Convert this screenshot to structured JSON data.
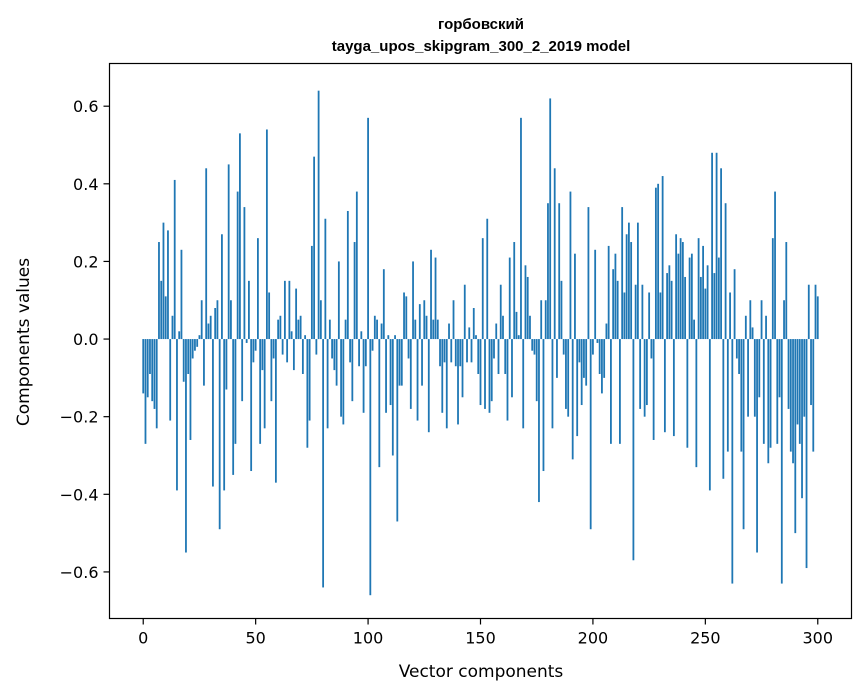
{
  "chart_data": {
    "type": "bar",
    "title": "горбовский",
    "subtitle": "tayga_upos_skipgram_300_2_2019 model",
    "xlabel": "Vector components",
    "ylabel": "Components values",
    "xlim": [
      -15,
      315
    ],
    "ylim": [
      -0.72,
      0.71
    ],
    "x_ticks": [
      0,
      50,
      100,
      150,
      200,
      250,
      300
    ],
    "x_tick_labels": [
      "0",
      "50",
      "100",
      "150",
      "200",
      "250",
      "300"
    ],
    "y_ticks": [
      -0.6,
      -0.4,
      -0.2,
      0.0,
      0.2,
      0.4,
      0.6
    ],
    "y_tick_labels": [
      "−0.6",
      "−0.4",
      "−0.2",
      "0.0",
      "0.2",
      "0.4",
      "0.6"
    ],
    "grid": false,
    "bar_color": "#1f77b4",
    "x": "0..299 (index of each value)",
    "values": [
      -0.14,
      -0.27,
      -0.15,
      -0.09,
      -0.16,
      -0.18,
      -0.23,
      0.25,
      0.15,
      0.3,
      0.11,
      0.28,
      -0.21,
      0.06,
      0.41,
      -0.39,
      0.02,
      0.23,
      -0.11,
      -0.55,
      -0.09,
      -0.26,
      -0.05,
      -0.03,
      -0.02,
      0.01,
      0.1,
      -0.12,
      0.44,
      0.04,
      0.06,
      -0.38,
      0.08,
      0.1,
      -0.49,
      0.27,
      -0.39,
      -0.13,
      0.45,
      0.1,
      -0.35,
      -0.27,
      0.38,
      0.53,
      -0.16,
      0.34,
      -0.01,
      0.15,
      -0.34,
      -0.06,
      -0.03,
      0.26,
      -0.27,
      -0.08,
      -0.23,
      0.54,
      0.12,
      -0.16,
      -0.05,
      -0.37,
      0.05,
      0.06,
      -0.04,
      0.15,
      -0.06,
      0.15,
      0.02,
      -0.08,
      0.13,
      0.05,
      0.06,
      -0.09,
      0.01,
      -0.28,
      -0.21,
      0.24,
      0.47,
      -0.04,
      0.64,
      0.1,
      -0.64,
      0.31,
      -0.23,
      0.05,
      -0.05,
      -0.08,
      -0.12,
      0.2,
      -0.2,
      -0.22,
      0.05,
      0.33,
      -0.06,
      -0.16,
      0.25,
      0.38,
      -0.07,
      0.02,
      -0.19,
      -0.07,
      0.57,
      -0.66,
      -0.03,
      0.06,
      0.05,
      -0.33,
      0.04,
      0.18,
      -0.19,
      0.01,
      -0.17,
      -0.3,
      0.01,
      -0.47,
      -0.12,
      -0.12,
      0.12,
      0.11,
      -0.05,
      -0.18,
      0.2,
      0.05,
      -0.21,
      0.09,
      -0.12,
      0.1,
      0.06,
      -0.24,
      0.23,
      0.05,
      0.21,
      0.05,
      -0.07,
      -0.19,
      -0.06,
      -0.23,
      0.04,
      -0.06,
      0.1,
      -0.07,
      -0.22,
      -0.07,
      -0.15,
      0.14,
      -0.06,
      0.03,
      -0.06,
      0.08,
      0.01,
      -0.09,
      -0.17,
      0.26,
      -0.18,
      0.31,
      -0.19,
      -0.16,
      -0.05,
      0.04,
      -0.09,
      0.14,
      0.06,
      -0.09,
      -0.21,
      0.21,
      -0.15,
      0.25,
      0.07,
      0.01,
      0.57,
      -0.23,
      0.19,
      0.16,
      0.06,
      -0.03,
      -0.04,
      -0.16,
      -0.42,
      0.1,
      -0.34,
      0.1,
      0.35,
      0.62,
      -0.23,
      0.44,
      -0.1,
      0.35,
      0.15,
      -0.04,
      -0.18,
      -0.2,
      0.38,
      -0.31,
      0.22,
      -0.25,
      -0.06,
      -0.17,
      -0.1,
      -0.12,
      0.34,
      -0.49,
      -0.04,
      0.23,
      -0.01,
      -0.09,
      -0.14,
      -0.1,
      0.04,
      0.24,
      -0.27,
      0.18,
      0.22,
      0.15,
      -0.27,
      0.34,
      0.12,
      0.27,
      0.3,
      0.25,
      -0.57,
      0.14,
      0.3,
      -0.18,
      0.14,
      -0.2,
      -0.17,
      0.12,
      -0.05,
      -0.26,
      0.39,
      0.4,
      0.12,
      0.42,
      -0.24,
      0.17,
      0.19,
      0.15,
      -0.25,
      0.27,
      0.22,
      0.26,
      0.25,
      0.16,
      -0.28,
      0.21,
      0.22,
      0.05,
      -0.33,
      0.26,
      0.16,
      0.24,
      0.13,
      0.19,
      -0.39,
      0.48,
      0.17,
      0.48,
      0.21,
      0.44,
      -0.36,
      0.35,
      -0.29,
      0.12,
      -0.63,
      0.18,
      -0.05,
      -0.09,
      -0.29,
      -0.49,
      0.06,
      -0.2,
      0.1,
      0.03,
      -0.2,
      -0.55,
      -0.15,
      0.1,
      -0.27,
      0.06,
      -0.32,
      -0.28,
      0.26,
      0.38,
      -0.27,
      -0.15,
      -0.63,
      0.1,
      0.25,
      -0.18,
      -0.29,
      -0.32,
      -0.5,
      -0.22,
      -0.27,
      -0.41,
      -0.2,
      -0.59,
      0.14,
      -0.17,
      -0.29,
      0.14,
      0.11
    ]
  }
}
